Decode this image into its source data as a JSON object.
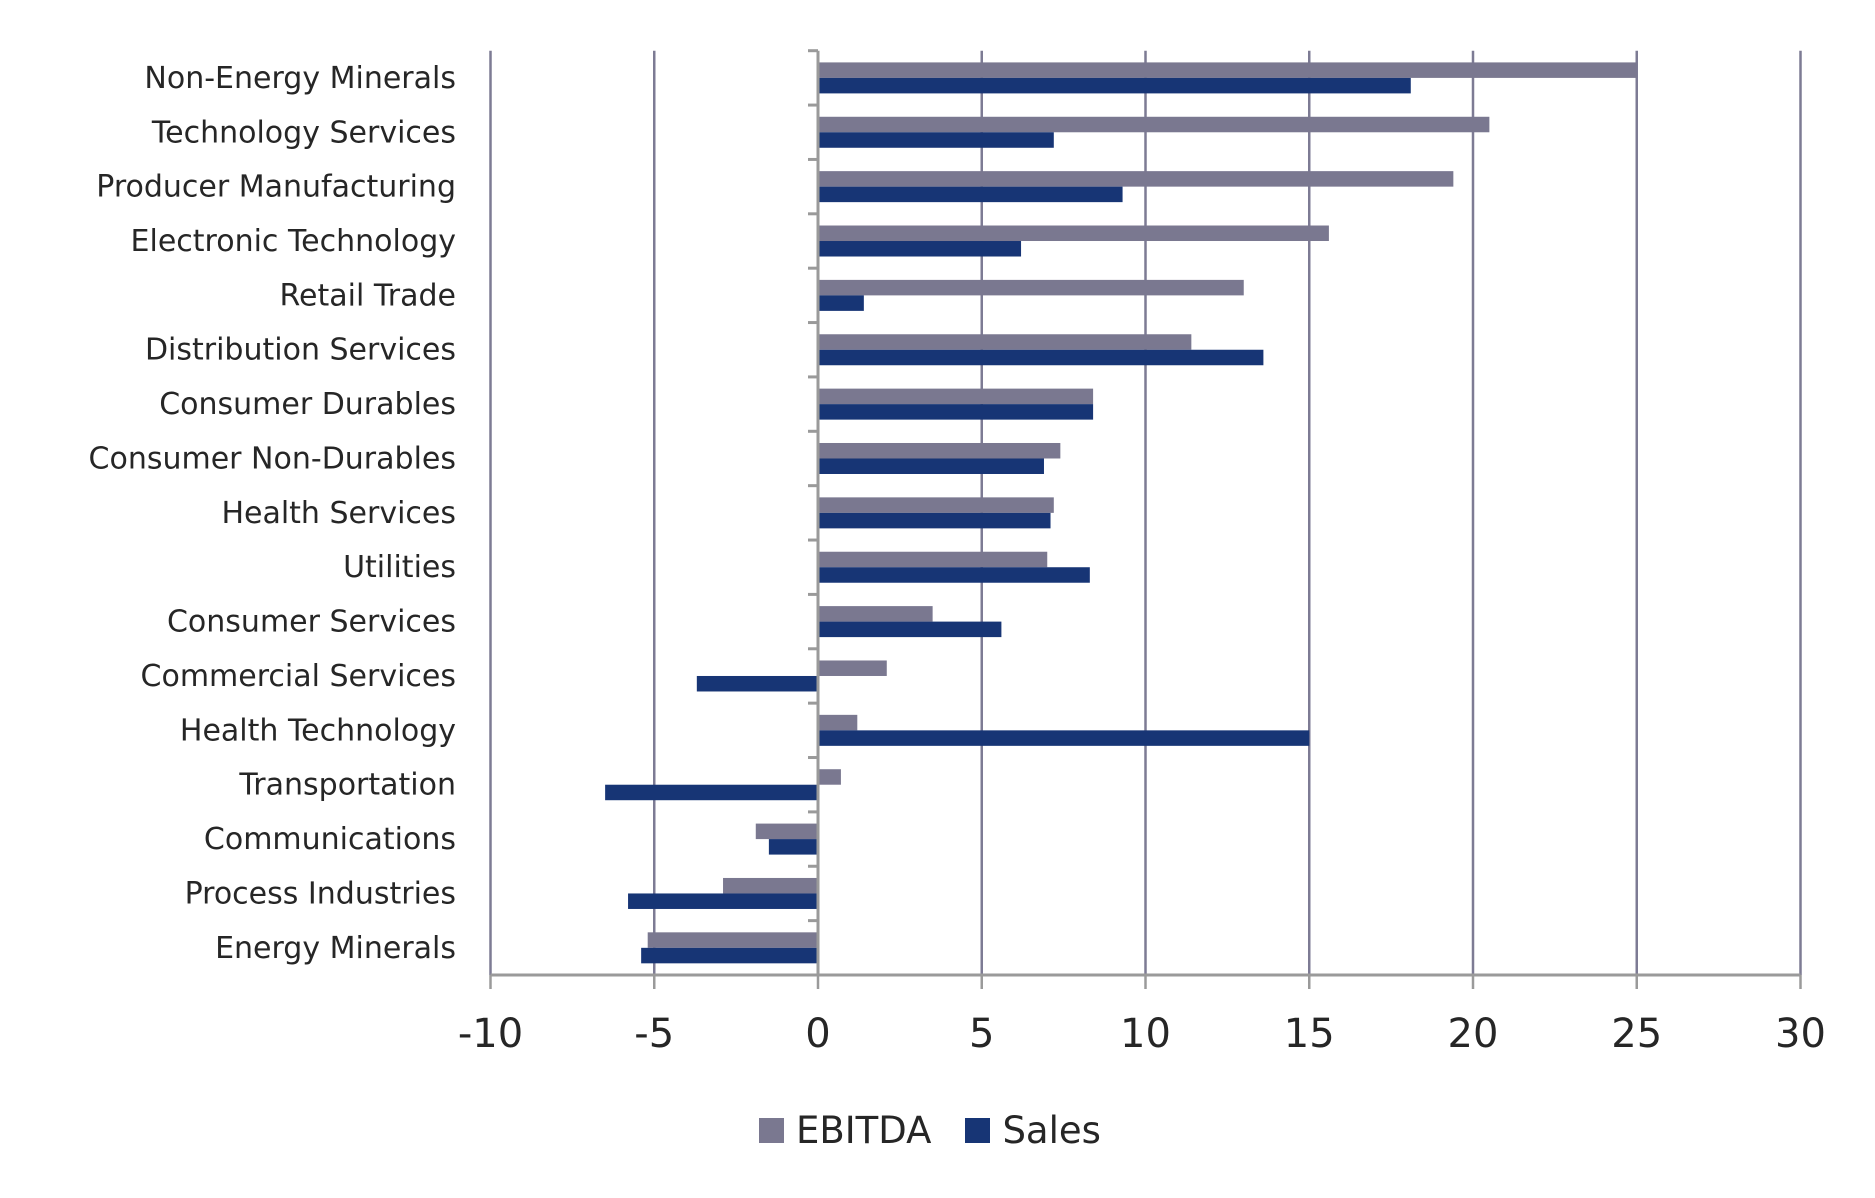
{
  "chart_data": {
    "type": "bar",
    "orientation": "horizontal",
    "title": "",
    "xlabel": "",
    "ylabel": "",
    "xlim": [
      -10,
      30
    ],
    "x_ticks": [
      -10,
      -5,
      0,
      5,
      10,
      15,
      20,
      25,
      30
    ],
    "x_tick_labels": [
      "-10",
      "-5",
      "0",
      "5",
      "10",
      "15",
      "20",
      "25",
      "30"
    ],
    "grid": "vertical major gridlines on",
    "legend_position": "bottom",
    "categories": [
      "Non-Energy Minerals",
      "Technology Services",
      "Producer Manufacturing",
      "Electronic Technology",
      "Retail Trade",
      "Distribution Services",
      "Consumer Durables",
      "Consumer Non-Durables",
      "Health Services",
      "Utilities",
      "Consumer Services",
      "Commercial Services",
      "Health Technology",
      "Transportation",
      "Communications",
      "Process Industries",
      "Energy Minerals"
    ],
    "series": [
      {
        "name": "EBITDA",
        "color": "#7a7890",
        "values": [
          25.0,
          20.5,
          19.4,
          15.6,
          13.0,
          11.4,
          8.4,
          7.4,
          7.2,
          7.0,
          3.5,
          2.1,
          1.2,
          0.7,
          -1.9,
          -2.9,
          -5.2
        ]
      },
      {
        "name": "Sales",
        "color": "#173575",
        "values": [
          18.1,
          7.2,
          9.3,
          6.2,
          1.4,
          13.6,
          8.4,
          6.9,
          7.1,
          8.3,
          5.6,
          -3.7,
          15.0,
          -6.5,
          -1.5,
          -5.8,
          -5.4
        ]
      }
    ]
  },
  "legend": {
    "items": [
      {
        "label": "EBITDA",
        "color": "#7a7890"
      },
      {
        "label": "Sales",
        "color": "#173575"
      }
    ]
  },
  "colors": {
    "gridline": "#7d7b94",
    "axis": "#9a9a9a",
    "text": "#262626"
  }
}
